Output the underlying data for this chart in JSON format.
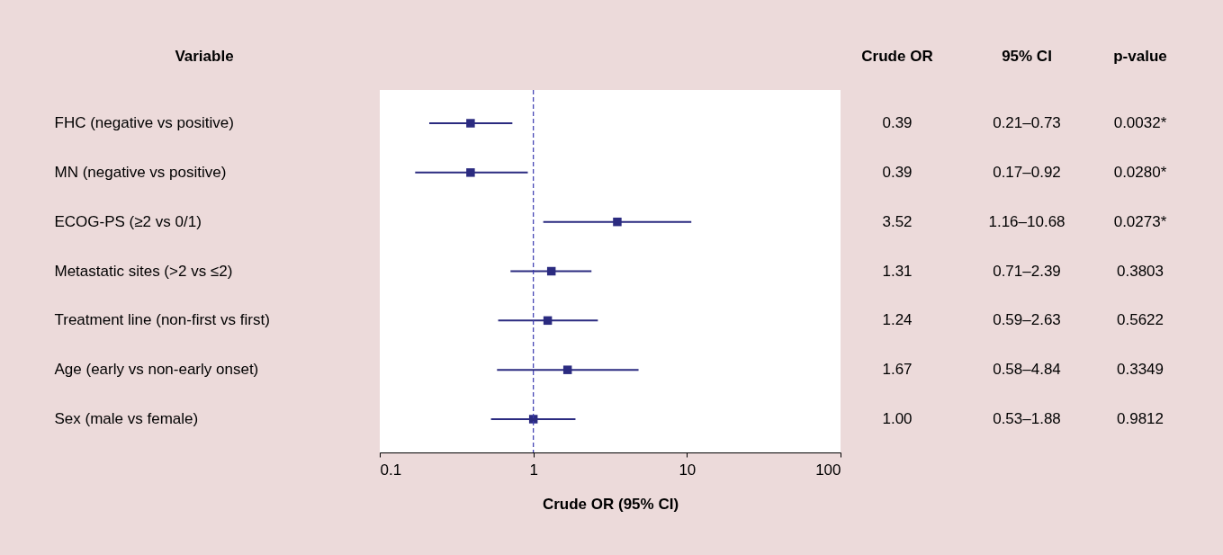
{
  "chart_data": {
    "type": "scatter",
    "orientation": "horizontal",
    "ylabel": "Variable",
    "xlabel": "Crude OR (95% CI)",
    "categories": [
      "FHC (negative vs positive)",
      "MN (negative vs positive)",
      "ECOG-PS (≥2 vs 0/1)",
      "Metastatic sites (>2 vs ≤2)",
      "Treatment line (non-first vs first)",
      "Age (early vs non-early onset)",
      "Sex (male vs female)"
    ],
    "values": [
      0.39,
      0.39,
      3.52,
      1.31,
      1.24,
      1.67,
      1.0
    ],
    "errors": [
      [
        0.21,
        0.73
      ],
      [
        0.17,
        0.92
      ],
      [
        1.16,
        10.68
      ],
      [
        0.71,
        2.39
      ],
      [
        0.59,
        2.63
      ],
      [
        0.58,
        4.84
      ],
      [
        0.53,
        1.88
      ]
    ],
    "value_labels": [
      "0.39",
      "0.39",
      "3.52",
      "1.31",
      "1.24",
      "1.67",
      "1.00"
    ],
    "color": "#2b2b80",
    "marker": "square",
    "log": "x",
    "xlim": [
      0.1,
      100
    ],
    "xticks": [
      0.1,
      1,
      10,
      100
    ],
    "grid": false,
    "ref_lines": [
      {
        "axis": "x",
        "value": 1,
        "color": "#3a3ab0",
        "line_style": "dashed"
      }
    ],
    "annotations": [
      "Crude OR",
      "95% CI",
      "p-value",
      "0.21–0.73",
      "0.17–0.92",
      "1.16–10.68",
      "0.71–2.39",
      "0.59–2.63",
      "0.58–4.84",
      "0.53–1.88",
      "0.0032*",
      "0.0280*",
      "0.0273*",
      "0.3803",
      "0.5622",
      "0.3349",
      "0.9812"
    ]
  }
}
